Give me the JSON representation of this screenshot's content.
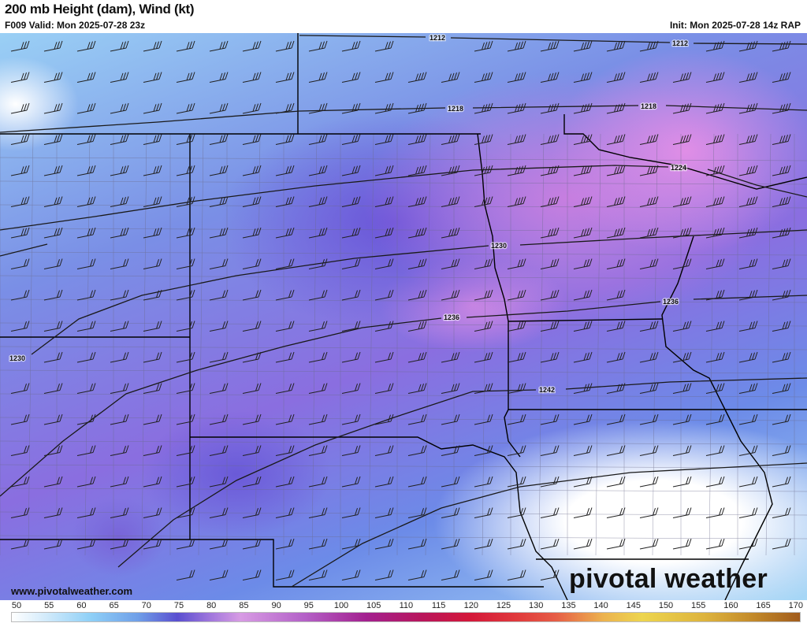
{
  "header": {
    "title": "200 mb Height (dam), Wind (kt)",
    "valid": "F009 Valid: Mon 2025-07-28 23z",
    "init": "Init: Mon 2025-07-28 14z RAP"
  },
  "map": {
    "contours": [
      {
        "value": 1212,
        "labels": [
          "1212",
          "1212"
        ]
      },
      {
        "value": 1218,
        "labels": [
          "1218",
          "1218"
        ]
      },
      {
        "value": 1224,
        "labels": [
          "1224"
        ]
      },
      {
        "value": 1230,
        "labels": [
          "1230",
          "1230"
        ]
      },
      {
        "value": 1236,
        "labels": [
          "1236",
          "1236"
        ]
      },
      {
        "value": 1242,
        "labels": [
          "1242"
        ]
      }
    ],
    "wind_barb_style": "west-southwesterly barbs",
    "colors": {
      "contour": "#111111",
      "border": "#000000",
      "county": "#6b6b8a"
    }
  },
  "footer": {
    "site": "www.pivotalweather.com",
    "logo": "pivotal weather"
  },
  "colorbar": {
    "unit": "kt",
    "ticks": [
      "50",
      "55",
      "60",
      "65",
      "70",
      "75",
      "80",
      "85",
      "90",
      "95",
      "100",
      "105",
      "110",
      "115",
      "120",
      "125",
      "130",
      "135",
      "140",
      "145",
      "150",
      "155",
      "160",
      "165",
      "170"
    ]
  }
}
